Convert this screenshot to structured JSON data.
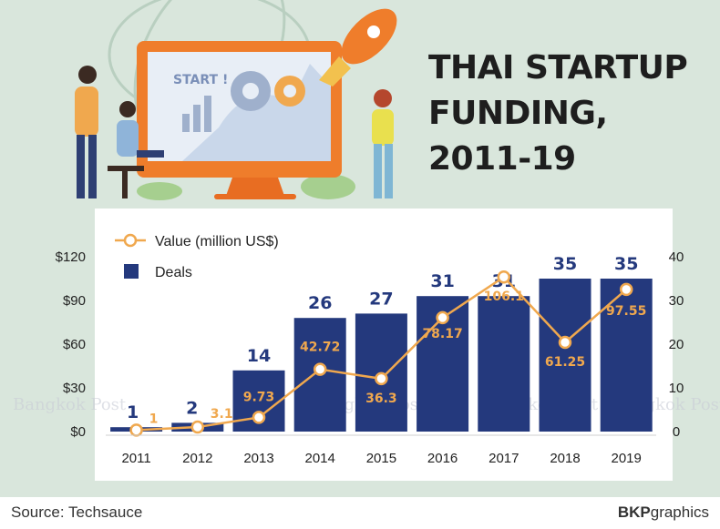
{
  "title_lines": [
    "THAI STARTUP",
    "FUNDING,",
    "2011-19"
  ],
  "footer": {
    "source": "Source: Techsauce",
    "brand_bold": "BKP",
    "brand_rest": "graphics"
  },
  "illustration": {
    "screen_text": "START !"
  },
  "watermark": "Bangkok Post",
  "colors": {
    "bar": "#24397d",
    "line": "#f0a84e",
    "background": "#d9e6dc",
    "panel": "#ffffff"
  },
  "chart_data": {
    "type": "bar",
    "categories": [
      "2011",
      "2012",
      "2013",
      "2014",
      "2015",
      "2016",
      "2017",
      "2018",
      "2019"
    ],
    "series": [
      {
        "name": "Deals",
        "type": "bar",
        "axis": "right",
        "values": [
          1,
          2,
          14,
          26,
          27,
          31,
          31,
          35,
          35
        ]
      },
      {
        "name": "Value (million US$)",
        "type": "line",
        "axis": "left",
        "values": [
          1,
          3.1,
          9.73,
          42.72,
          36.3,
          78.17,
          106.1,
          61.25,
          97.55
        ]
      }
    ],
    "value_labels": [
      "1",
      "3.1",
      "9.73",
      "42.72",
      "36.3",
      "78.17",
      "106.1",
      "61.25",
      "97.55"
    ],
    "deal_labels": [
      "1",
      "2",
      "14",
      "26",
      "27",
      "31",
      "31",
      "35",
      "35"
    ],
    "left_axis": {
      "ticks": [
        "$0",
        "$30",
        "$60",
        "$90",
        "$120"
      ],
      "range": [
        0,
        120
      ]
    },
    "right_axis": {
      "ticks": [
        "0",
        "10",
        "20",
        "30",
        "40"
      ],
      "range": [
        0,
        40
      ]
    },
    "legend": {
      "position": "top-left"
    }
  }
}
